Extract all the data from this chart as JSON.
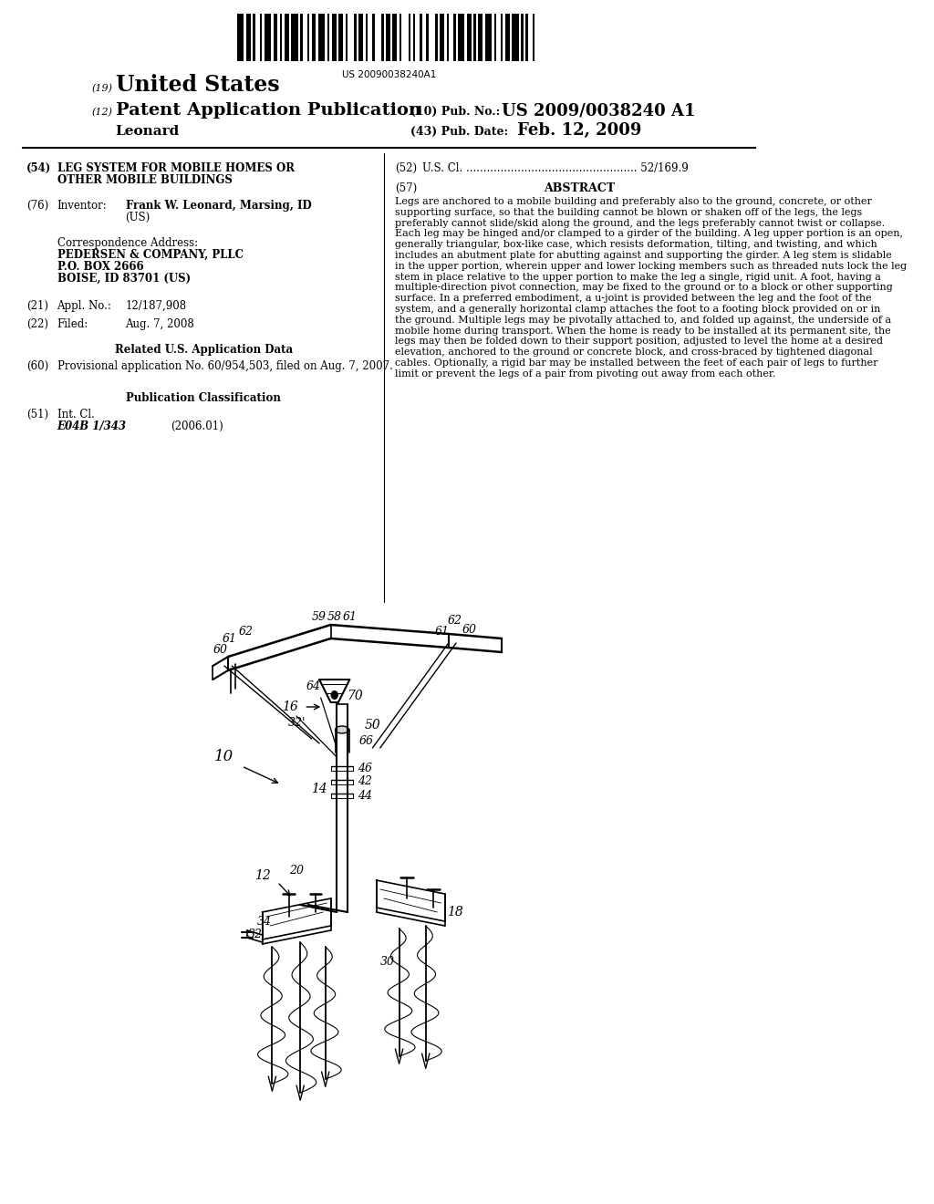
{
  "background_color": "#ffffff",
  "barcode_text": "US 20090038240A1",
  "country": "United States",
  "doc_type": "Patent Application Publication",
  "inventor_last": "Leonard",
  "pub_num_label": "(10) Pub. No.:",
  "pub_num": "US 2009/0038240 A1",
  "pub_date_label": "(43) Pub. Date:",
  "pub_date": "Feb. 12, 2009",
  "field54_label": "(54)",
  "field54_title1": "LEG SYSTEM FOR MOBILE HOMES OR",
  "field54_title2": "OTHER MOBILE BUILDINGS",
  "field52_label": "(52)",
  "field52_text": "U.S. Cl. .................................................. 52/169.9",
  "field57_label": "(57)",
  "field57_title": "ABSTRACT",
  "abstract": "Legs are anchored to a mobile building and preferably also to the ground, concrete, or other supporting surface, so that the building cannot be blown or shaken off of the legs, the legs preferably cannot slide/skid along the ground, and the legs preferably cannot twist or collapse. Each leg may be hinged and/or clamped to a girder of the building. A leg upper portion is an open, generally triangular, box-like case, which resists deformation, tilting, and twisting, and which includes an abutment plate for abutting against and supporting the girder. A leg stem is slidable in the upper portion, wherein upper and lower locking members such as threaded nuts lock the leg stem in place relative to the upper portion to make the leg a single, rigid unit. A foot, having a multiple-direction pivot connection, may be fixed to the ground or to a block or other supporting surface. In a preferred embodiment, a u-joint is provided between the leg and the foot of the system, and a generally horizontal clamp attaches the foot to a footing block provided on or in the ground. Multiple legs may be pivotally attached to, and folded up against, the underside of a mobile home during transport. When the home is ready to be installed at its permanent site, the legs may then be folded down to their support position, adjusted to level the home at a desired elevation, anchored to the ground or concrete block, and cross-braced by tightened diagonal cables. Optionally, a rigid bar may be installed between the feet of each pair of legs to further limit or prevent the legs of a pair from pivoting out away from each other.",
  "field76_label": "(76)",
  "inventor_label": "Inventor:",
  "inventor_name": "Frank W. Leonard",
  "inventor_loc": "Marsing, ID (US)",
  "corr_title": "Correspondence Address:",
  "corr_company": "PEDERSEN & COMPANY, PLLC",
  "corr_box": "P.O. BOX 2666",
  "corr_city": "BOISE, ID 83701 (US)",
  "field21_label": "(21)",
  "appl_label": "Appl. No.:",
  "appl_num": "12/187,908",
  "field22_label": "(22)",
  "filed_label": "Filed:",
  "filed_date": "Aug. 7, 2008",
  "related_title": "Related U.S. Application Data",
  "field60_label": "(60)",
  "prov_text": "Provisional application No. 60/954,503, filed on Aug. 7, 2007.",
  "pub_class_title": "Publication Classification",
  "field51_label": "(51)",
  "intcl_label": "Int. Cl.",
  "intcl_class": "E04B 1/343",
  "intcl_year": "(2006.01)",
  "field19_label": "(19)",
  "field12_label": "(12)"
}
